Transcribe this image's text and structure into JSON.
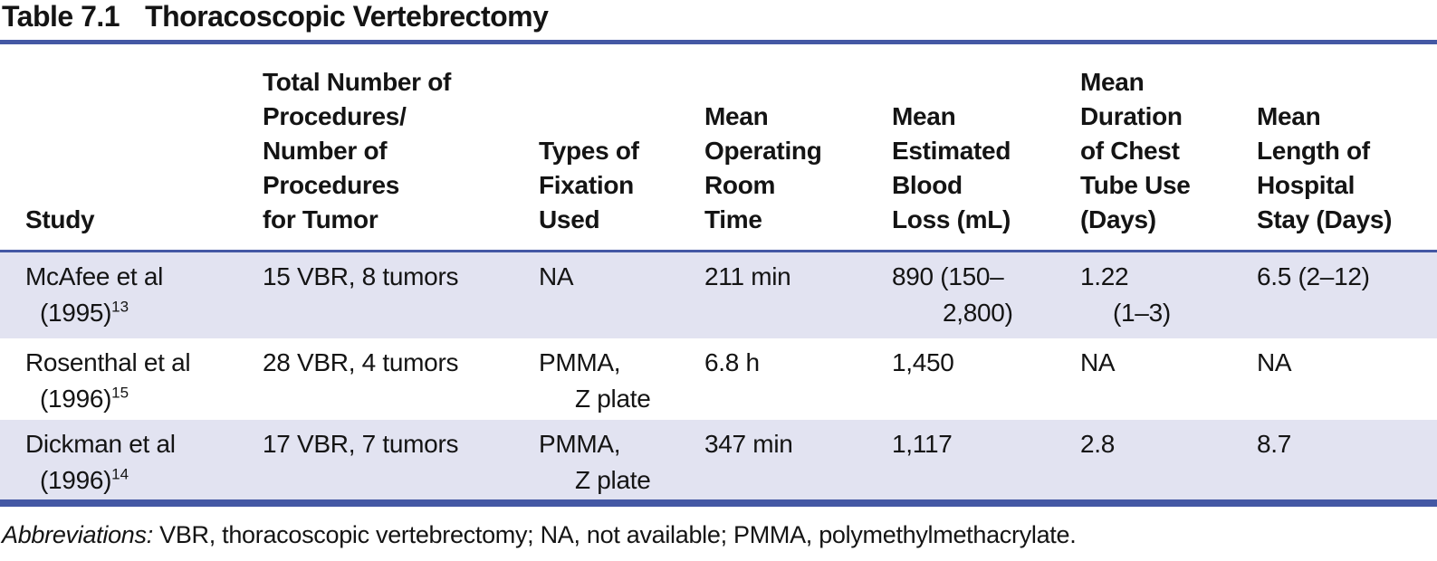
{
  "title": {
    "number": "Table 7.1",
    "text": "Thoracoscopic Vertebrectomy"
  },
  "colors": {
    "rule_blue": "#4458a4",
    "row_shade": "#e2e3f1",
    "text": "#141414"
  },
  "table": {
    "headers": [
      "Study",
      "Total Number of\nProcedures/\nNumber of\nProcedures\nfor Tumor",
      "Types of\nFixation\nUsed",
      "Mean\nOperating\nRoom\nTime",
      "Mean\nEstimated\nBlood\nLoss (mL)",
      "Mean\nDuration\nof Chest\nTube Use\n(Days)",
      "Mean\nLength of\nHospital\nStay (Days)"
    ],
    "rows": [
      {
        "cells": [
          {
            "a": "McAfee et al",
            "b": "(1995)",
            "sup": "13"
          },
          {
            "a": "15 VBR, 8 tumors"
          },
          {
            "a": "NA"
          },
          {
            "a": "211 min"
          },
          {
            "a": "890 (150–",
            "b": "2,800)"
          },
          {
            "a": "1.22",
            "b": "(1–3)"
          },
          {
            "a": "6.5 (2–12)"
          }
        ]
      },
      {
        "cells": [
          {
            "a": "Rosenthal et al",
            "b": "(1996)",
            "sup": "15"
          },
          {
            "a": "28 VBR, 4 tumors"
          },
          {
            "a": "PMMA,",
            "b": "Z plate"
          },
          {
            "a": "6.8 h"
          },
          {
            "a": "1,450"
          },
          {
            "a": "NA"
          },
          {
            "a": "NA"
          }
        ]
      },
      {
        "cells": [
          {
            "a": "Dickman et al",
            "b": "(1996)",
            "sup": "14"
          },
          {
            "a": "17 VBR, 7 tumors"
          },
          {
            "a": "PMMA,",
            "b": "Z plate"
          },
          {
            "a": "347 min"
          },
          {
            "a": "1,117"
          },
          {
            "a": "2.8"
          },
          {
            "a": "8.7"
          }
        ]
      }
    ]
  },
  "footer": {
    "label": "Abbreviations:",
    "text": " VBR, thoracoscopic vertebrectomy; NA, not available; PMMA, polymethylmethacrylate."
  }
}
